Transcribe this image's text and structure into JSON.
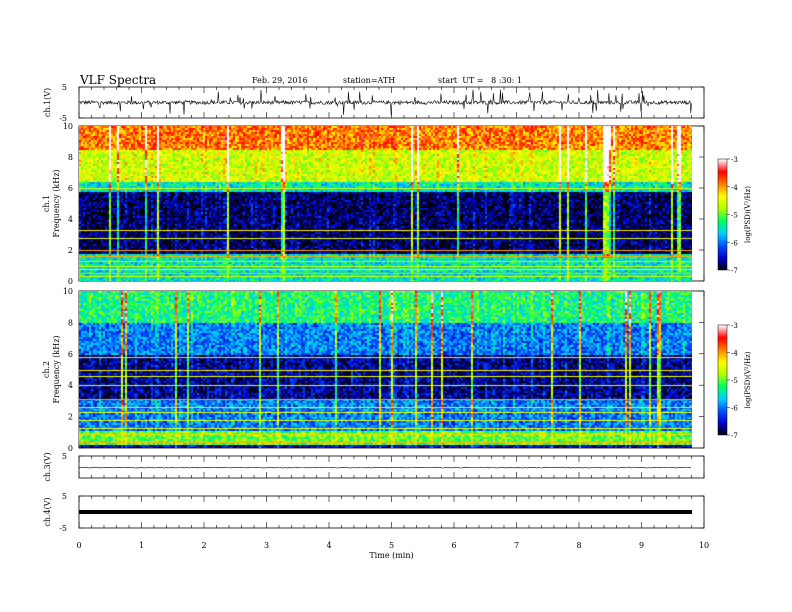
{
  "header": {
    "title": "VLF Spectra",
    "date": "Feb. 29, 2016",
    "station": "station=ATH",
    "start": "start  UT =   8 :30: 1"
  },
  "chart_data": [
    {
      "type": "line",
      "name": "ch.1 waveform",
      "ylabel": "ch.1(V)",
      "ylim": [
        -5,
        5
      ],
      "yticks": [
        "5",
        "-5"
      ],
      "xlim": [
        0,
        10
      ],
      "level": 0,
      "spike_amplitude": 2.5
    },
    {
      "type": "heatmap",
      "name": "ch.1 spectrogram",
      "ylabel": "ch.1",
      "ylabel2": "Frequency (kHz)",
      "ylim": [
        0,
        10
      ],
      "yticks": [
        "0",
        "2",
        "4",
        "6",
        "8",
        "10"
      ],
      "xlim": [
        0,
        10
      ],
      "colorbar": {
        "label": "log(PSD)(V²/Hz)",
        "ticks": [
          "-3",
          "-4",
          "-5",
          "-6",
          "-7"
        ],
        "range": [
          -7,
          -3
        ],
        "colors": [
          "#000000",
          "#0000c8",
          "#0050ff",
          "#00d0ff",
          "#00ff60",
          "#b0ff00",
          "#ffff00",
          "#ff8000",
          "#ff0000",
          "#ffffff"
        ]
      },
      "bands_khz": [
        {
          "from": 0,
          "to": 1.8,
          "logpsd": -5.5
        },
        {
          "from": 1.8,
          "to": 5.8,
          "logpsd": -6.8
        },
        {
          "from": 5.8,
          "to": 6.5,
          "logpsd": -5.5
        },
        {
          "from": 6.5,
          "to": 8.5,
          "logpsd": -4.6
        },
        {
          "from": 8.5,
          "to": 10,
          "logpsd": -3.9
        }
      ]
    },
    {
      "type": "heatmap",
      "name": "ch.2 spectrogram",
      "ylabel": "ch.2",
      "ylabel2": "Frequency (kHz)",
      "ylim": [
        0,
        10
      ],
      "yticks": [
        "0",
        "2",
        "4",
        "6",
        "8",
        "10"
      ],
      "xlim": [
        0,
        10
      ],
      "colorbar": {
        "label": "log(PSD)(V²/Hz)",
        "ticks": [
          "-3",
          "-4",
          "-5",
          "-6",
          "-7"
        ],
        "range": [
          -7,
          -3
        ]
      },
      "bands_khz": [
        {
          "from": 0,
          "to": 0.3,
          "logpsd": -6.6
        },
        {
          "from": 0.3,
          "to": 1.2,
          "logpsd": -5.0
        },
        {
          "from": 1.2,
          "to": 3.2,
          "logpsd": -6.0
        },
        {
          "from": 3.2,
          "to": 6.0,
          "logpsd": -6.7
        },
        {
          "from": 6.0,
          "to": 8.0,
          "logpsd": -6.0
        },
        {
          "from": 8.0,
          "to": 10,
          "logpsd": -5.3
        }
      ]
    },
    {
      "type": "line",
      "name": "ch.3 waveform",
      "ylabel": "ch.3(V)",
      "ylim": [
        -5,
        5
      ],
      "yticks": [
        "5"
      ],
      "xlim": [
        0,
        10
      ],
      "level": 0
    },
    {
      "type": "line",
      "name": "ch.4 waveform",
      "ylabel": "ch.4(V)",
      "ylim": [
        -5,
        5
      ],
      "yticks": [
        "5",
        "-5"
      ],
      "xlim": [
        0,
        10
      ],
      "level": 0
    }
  ],
  "x_axis": {
    "label": "Time (min)",
    "ticks": [
      "0",
      "1",
      "2",
      "3",
      "4",
      "5",
      "6",
      "7",
      "8",
      "9",
      "10"
    ],
    "data_end_min": 9.8
  }
}
